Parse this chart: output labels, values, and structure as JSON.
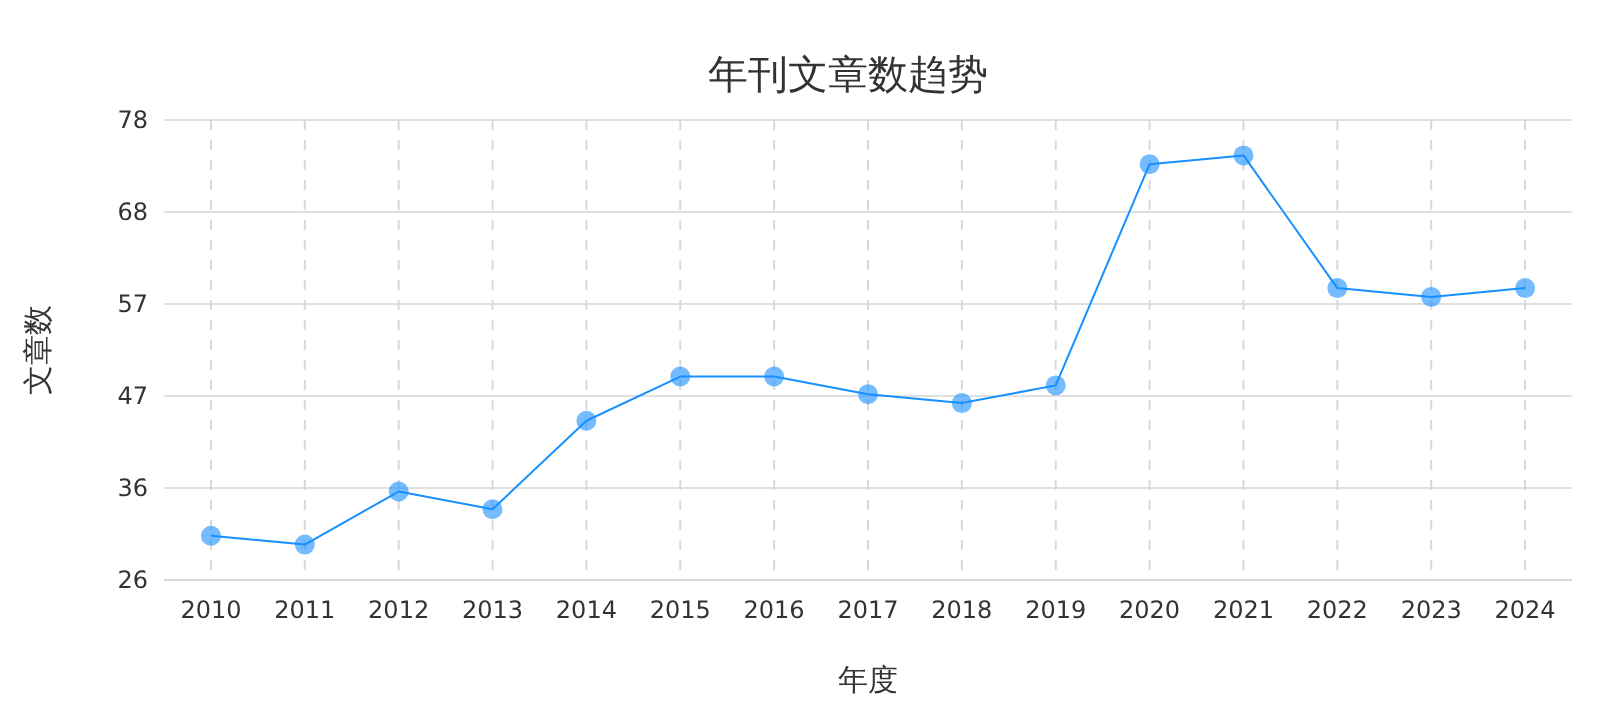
{
  "chart_data": {
    "type": "line",
    "title": "年刊文章数趋势",
    "xlabel": "年度",
    "ylabel": "文章数",
    "categories": [
      "2010",
      "2011",
      "2012",
      "2013",
      "2014",
      "2015",
      "2016",
      "2017",
      "2018",
      "2019",
      "2020",
      "2021",
      "2022",
      "2023",
      "2024"
    ],
    "series": [
      {
        "color": "#1890ff",
        "values": [
          31,
          30,
          36,
          34,
          44,
          49,
          49,
          47,
          46,
          48,
          73,
          74,
          59,
          58,
          59
        ]
      }
    ],
    "ylim": [
      26,
      78
    ],
    "yticks": [
      {
        "value": 26,
        "label": "26"
      },
      {
        "value": 36.4,
        "label": "36"
      },
      {
        "value": 46.8,
        "label": "47"
      },
      {
        "value": 57.2,
        "label": "57"
      },
      {
        "value": 67.6,
        "label": "68"
      },
      {
        "value": 78,
        "label": "78"
      }
    ],
    "grid": true,
    "marker": "circle",
    "line_style": "solid"
  }
}
